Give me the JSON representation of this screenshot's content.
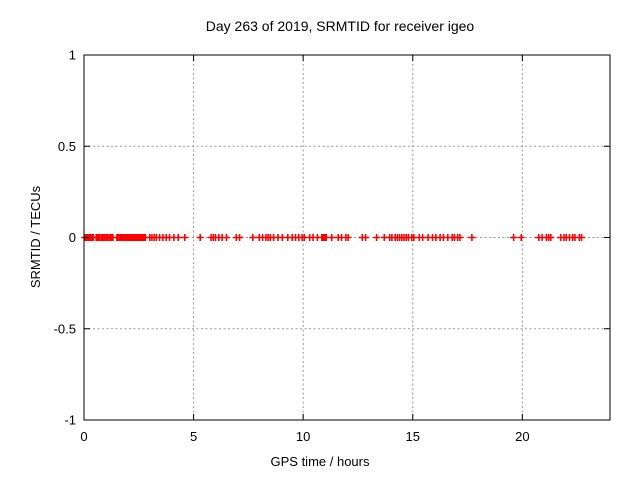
{
  "chart": {
    "title": "Day 263 of 2019, SRMTID for receiver igeo",
    "xlabel": "GPS time / hours",
    "ylabel": "SRMTID / TECUs"
  },
  "chart_data": {
    "type": "scatter",
    "title": "Day 263 of 2019, SRMTID for receiver igeo",
    "xlabel": "GPS time / hours",
    "ylabel": "SRMTID / TECUs",
    "xlim": [
      0,
      24
    ],
    "ylim": [
      -1,
      1
    ],
    "xticks": [
      0,
      5,
      10,
      15,
      20
    ],
    "yticks": [
      -1,
      -0.5,
      0,
      0.5,
      1
    ],
    "grid": true,
    "legend": "none",
    "marker": "plus",
    "marker_color": "#ff0000",
    "grid_color": "#999999",
    "border_color": "#000000",
    "background_color": "#ffffff",
    "y_constant": 0,
    "x": [
      0.03,
      0.08,
      0.13,
      0.18,
      0.23,
      0.28,
      0.33,
      0.38,
      0.43,
      0.55,
      0.6,
      0.65,
      0.7,
      0.78,
      0.85,
      0.92,
      1.0,
      1.05,
      1.1,
      1.18,
      1.25,
      1.32,
      1.5,
      1.55,
      1.6,
      1.65,
      1.7,
      1.75,
      1.8,
      1.85,
      1.9,
      1.95,
      2.0,
      2.05,
      2.1,
      2.15,
      2.2,
      2.25,
      2.3,
      2.35,
      2.4,
      2.45,
      2.5,
      2.55,
      2.6,
      2.65,
      2.7,
      2.75,
      2.8,
      3.0,
      3.1,
      3.2,
      3.3,
      3.45,
      3.6,
      3.75,
      3.9,
      4.1,
      4.3,
      4.6,
      5.3,
      5.8,
      5.9,
      6.0,
      6.15,
      6.3,
      6.5,
      6.95,
      7.1,
      7.7,
      8.0,
      8.15,
      8.3,
      8.4,
      8.5,
      8.65,
      8.85,
      9.05,
      9.3,
      9.5,
      9.65,
      9.8,
      9.95,
      10.05,
      10.3,
      10.45,
      10.65,
      10.85,
      10.9,
      10.95,
      11.0,
      11.05,
      11.3,
      11.6,
      11.75,
      11.95,
      12.05,
      12.7,
      12.85,
      13.35,
      13.7,
      13.95,
      14.05,
      14.2,
      14.3,
      14.4,
      14.5,
      14.6,
      14.7,
      14.8,
      14.95,
      15.05,
      15.3,
      15.45,
      15.7,
      15.9,
      16.05,
      16.25,
      16.4,
      16.6,
      16.8,
      16.9,
      17.05,
      17.15,
      17.7,
      19.6,
      19.95,
      20.75,
      20.9,
      21.1,
      21.2,
      21.3,
      21.75,
      21.9,
      22.0,
      22.15,
      22.3,
      22.4,
      22.6,
      22.7
    ]
  }
}
